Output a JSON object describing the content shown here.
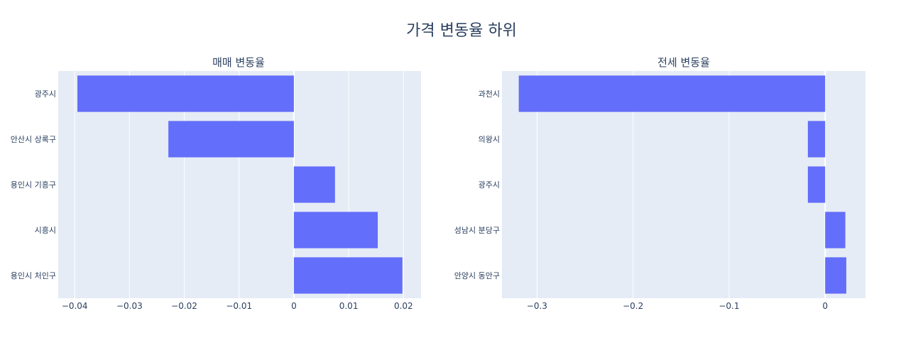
{
  "title": "가격 변동율 하위",
  "colors": {
    "bar": "#636efa",
    "plot_bg": "#e5ecf6",
    "text": "#2a3f5f"
  },
  "chart_data": [
    {
      "type": "bar",
      "orientation": "horizontal",
      "title": "매매 변동율",
      "categories": [
        "광주시",
        "안산시 상록구",
        "용인시 기흥구",
        "시흥시",
        "용인시 처인구"
      ],
      "values": [
        -0.0395,
        -0.0229,
        0.0075,
        0.0153,
        0.0198
      ],
      "xlim": [
        -0.043,
        0.0232
      ],
      "xticks": [
        -0.04,
        -0.03,
        -0.02,
        -0.01,
        0,
        0.01,
        0.02
      ],
      "xtick_labels": [
        "−0.04",
        "−0.03",
        "−0.02",
        "−0.01",
        "0",
        "0.01",
        "0.02"
      ],
      "grid": true
    },
    {
      "type": "bar",
      "orientation": "horizontal",
      "title": "전세 변동율",
      "categories": [
        "과천시",
        "의왕시",
        "광주시",
        "성남시  분당구",
        "안양시 동안구"
      ],
      "values": [
        -0.319,
        -0.018,
        -0.018,
        0.021,
        0.022
      ],
      "xlim": [
        -0.3365,
        0.042
      ],
      "xticks": [
        -0.3,
        -0.2,
        -0.1,
        0
      ],
      "xtick_labels": [
        "−0.3",
        "−0.2",
        "−0.1",
        "0"
      ],
      "grid": true
    }
  ]
}
